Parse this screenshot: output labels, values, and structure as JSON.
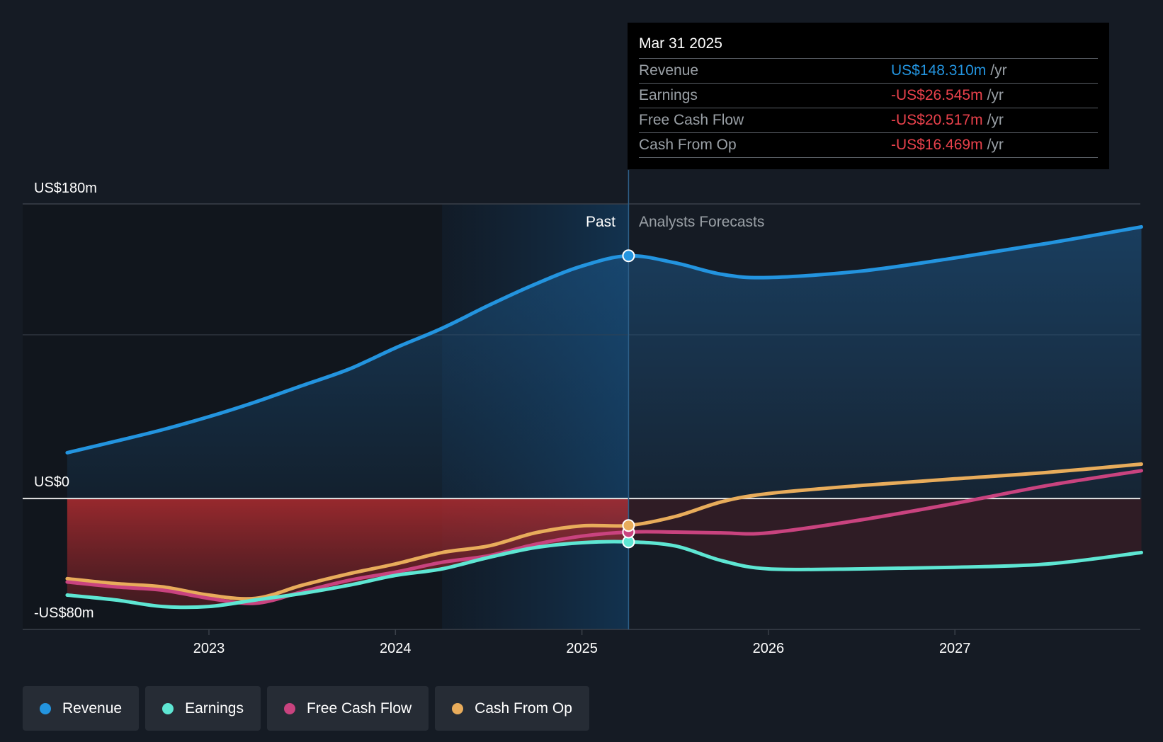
{
  "chart_data": {
    "type": "line",
    "y_axis": {
      "min": -80,
      "max": 180,
      "unit": "US$m",
      "labels": [
        "US$180m",
        "US$0",
        "-US$80m"
      ]
    },
    "x_axis": {
      "ticks": [
        "2023",
        "2024",
        "2025",
        "2026",
        "2027"
      ],
      "range": [
        2022.24,
        2028.0
      ]
    },
    "past_label": "Past",
    "forecast_label": "Analysts Forecasts",
    "past_boundary": 2025.25,
    "shaded_start": 2024.25,
    "series": [
      {
        "name": "Revenue",
        "color": "#2394df",
        "points": [
          [
            2022.24,
            28
          ],
          [
            2022.5,
            35
          ],
          [
            2022.75,
            42
          ],
          [
            2023.0,
            50
          ],
          [
            2023.25,
            59
          ],
          [
            2023.5,
            69
          ],
          [
            2023.75,
            79
          ],
          [
            2024.0,
            92
          ],
          [
            2024.25,
            104
          ],
          [
            2024.5,
            118
          ],
          [
            2024.75,
            131
          ],
          [
            2025.0,
            142
          ],
          [
            2025.25,
            148.3
          ],
          [
            2025.5,
            144
          ],
          [
            2025.75,
            137
          ],
          [
            2026.0,
            135
          ],
          [
            2026.5,
            139
          ],
          [
            2027.0,
            147
          ],
          [
            2027.5,
            156
          ],
          [
            2028.0,
            166
          ]
        ]
      },
      {
        "name": "Earnings",
        "color": "#5ee6d3",
        "points": [
          [
            2022.24,
            -59
          ],
          [
            2022.5,
            -62
          ],
          [
            2022.75,
            -66
          ],
          [
            2023.0,
            -66
          ],
          [
            2023.25,
            -62
          ],
          [
            2023.5,
            -58
          ],
          [
            2023.75,
            -53
          ],
          [
            2024.0,
            -47
          ],
          [
            2024.25,
            -43
          ],
          [
            2024.5,
            -36
          ],
          [
            2024.75,
            -30
          ],
          [
            2025.0,
            -27
          ],
          [
            2025.25,
            -26.5
          ],
          [
            2025.5,
            -29
          ],
          [
            2025.75,
            -38
          ],
          [
            2026.0,
            -43
          ],
          [
            2026.5,
            -43
          ],
          [
            2027.0,
            -42
          ],
          [
            2027.5,
            -40
          ],
          [
            2028.0,
            -33
          ]
        ]
      },
      {
        "name": "Free Cash Flow",
        "color": "#c9437f",
        "points": [
          [
            2022.24,
            -51
          ],
          [
            2022.5,
            -54
          ],
          [
            2022.75,
            -56
          ],
          [
            2023.0,
            -61
          ],
          [
            2023.25,
            -64
          ],
          [
            2023.5,
            -57
          ],
          [
            2023.75,
            -50
          ],
          [
            2024.0,
            -45
          ],
          [
            2024.25,
            -39
          ],
          [
            2024.5,
            -35
          ],
          [
            2024.75,
            -28
          ],
          [
            2025.0,
            -23
          ],
          [
            2025.25,
            -20.5
          ],
          [
            2025.5,
            -20.5
          ],
          [
            2025.75,
            -21
          ],
          [
            2026.0,
            -21
          ],
          [
            2026.5,
            -13
          ],
          [
            2027.0,
            -3
          ],
          [
            2027.5,
            8
          ],
          [
            2028.0,
            17
          ]
        ]
      },
      {
        "name": "Cash From Op",
        "color": "#e8ac5b",
        "points": [
          [
            2022.24,
            -49
          ],
          [
            2022.5,
            -52
          ],
          [
            2022.75,
            -54
          ],
          [
            2023.0,
            -59
          ],
          [
            2023.25,
            -61
          ],
          [
            2023.5,
            -53
          ],
          [
            2023.75,
            -46
          ],
          [
            2024.0,
            -40
          ],
          [
            2024.25,
            -33
          ],
          [
            2024.5,
            -29
          ],
          [
            2024.75,
            -21
          ],
          [
            2025.0,
            -16.7
          ],
          [
            2025.25,
            -16.5
          ],
          [
            2025.5,
            -11
          ],
          [
            2025.75,
            -2
          ],
          [
            2026.0,
            3
          ],
          [
            2026.5,
            8
          ],
          [
            2027.0,
            12
          ],
          [
            2027.5,
            16
          ],
          [
            2028.0,
            21
          ]
        ]
      }
    ]
  },
  "tooltip": {
    "date": "Mar 31 2025",
    "rows": [
      {
        "name": "Revenue",
        "value": "US$148.310m",
        "unit": "/yr",
        "color": "#2394df"
      },
      {
        "name": "Earnings",
        "value": "-US$26.545m",
        "unit": "/yr",
        "color": "#e8414b"
      },
      {
        "name": "Free Cash Flow",
        "value": "-US$20.517m",
        "unit": "/yr",
        "color": "#e8414b"
      },
      {
        "name": "Cash From Op",
        "value": "-US$16.469m",
        "unit": "/yr",
        "color": "#e8414b"
      }
    ]
  },
  "legend": [
    {
      "label": "Revenue",
      "color": "#2394df"
    },
    {
      "label": "Earnings",
      "color": "#5ee6d3"
    },
    {
      "label": "Free Cash Flow",
      "color": "#c9437f"
    },
    {
      "label": "Cash From Op",
      "color": "#e8ac5b"
    }
  ]
}
